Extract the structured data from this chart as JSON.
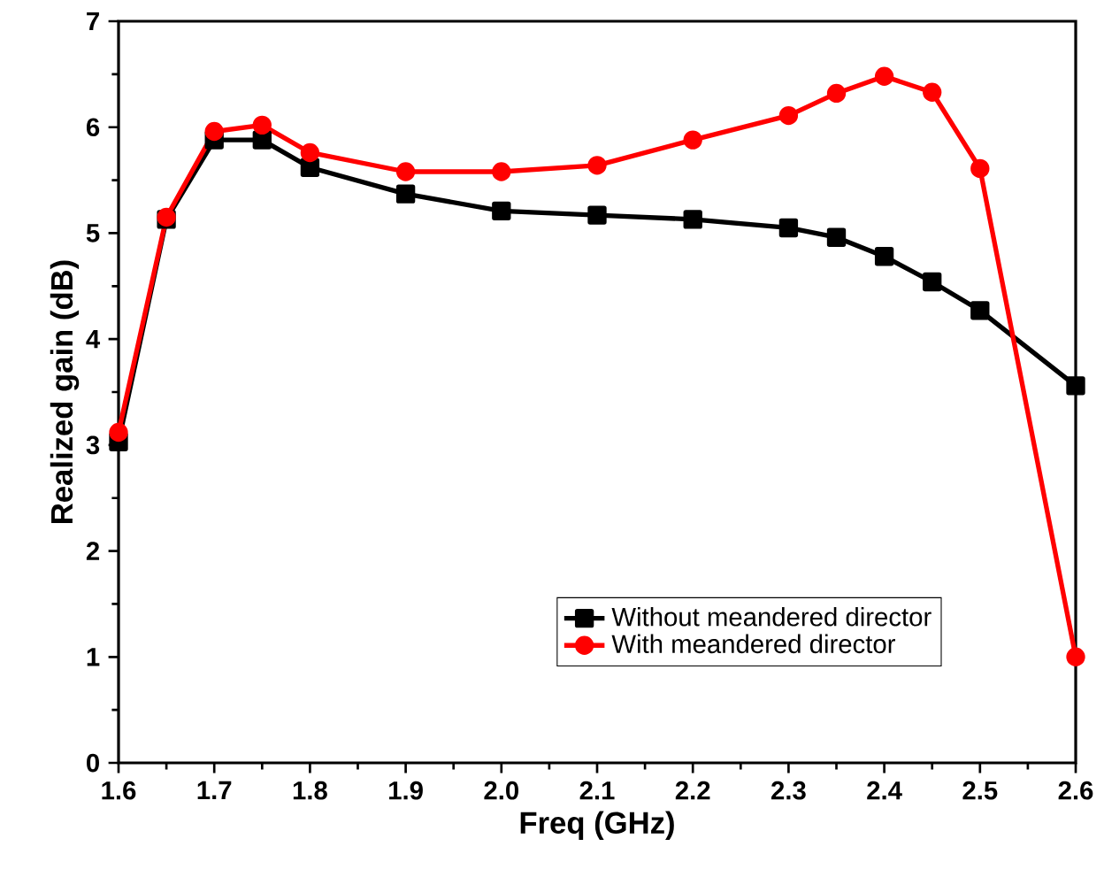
{
  "chart_data": {
    "type": "line",
    "xlabel": "Freq (GHz)",
    "ylabel": "Realized gain (dB)",
    "x": [
      1.6,
      1.65,
      1.7,
      1.75,
      1.8,
      1.9,
      2.0,
      2.1,
      2.2,
      2.3,
      2.35,
      2.4,
      2.45,
      2.5,
      2.6
    ],
    "series": [
      {
        "name": "Without meandered director",
        "color": "#000000",
        "marker": "square",
        "values": [
          3.03,
          5.13,
          5.88,
          5.88,
          5.62,
          5.37,
          5.21,
          5.17,
          5.13,
          5.05,
          4.96,
          4.78,
          4.54,
          4.27,
          3.56
        ]
      },
      {
        "name": "With meandered director",
        "color": "#ff0000",
        "marker": "circle",
        "values": [
          3.12,
          5.15,
          5.96,
          6.02,
          5.76,
          5.58,
          5.58,
          5.64,
          5.88,
          6.11,
          6.32,
          6.48,
          6.33,
          5.61,
          1.0
        ]
      }
    ],
    "xlim": [
      1.6,
      2.6
    ],
    "ylim": [
      0,
      7
    ],
    "xticks": [
      1.6,
      1.7,
      1.8,
      1.9,
      {
        "value": 2.0,
        "label": "2.0"
      },
      2.1,
      2.2,
      2.3,
      2.4,
      2.5,
      2.6
    ],
    "yticks": [
      0,
      1,
      2,
      3,
      4,
      5,
      6,
      7
    ],
    "grid": false,
    "legend": "bottom right",
    "line_style": "solid"
  }
}
